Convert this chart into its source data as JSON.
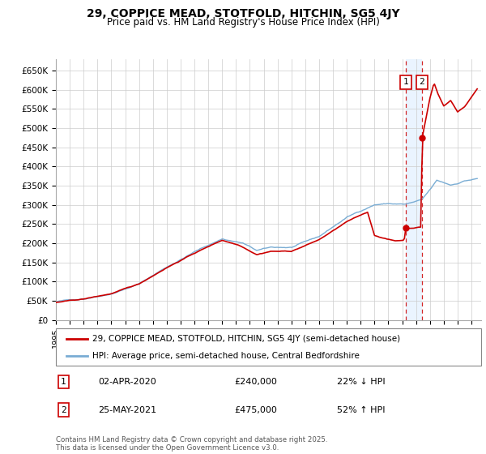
{
  "title": "29, COPPICE MEAD, STOTFOLD, HITCHIN, SG5 4JY",
  "subtitle": "Price paid vs. HM Land Registry's House Price Index (HPI)",
  "ylim": [
    0,
    680000
  ],
  "yticks": [
    0,
    50000,
    100000,
    150000,
    200000,
    250000,
    300000,
    350000,
    400000,
    450000,
    500000,
    550000,
    600000,
    650000
  ],
  "ytick_labels": [
    "£0",
    "£50K",
    "£100K",
    "£150K",
    "£200K",
    "£250K",
    "£300K",
    "£350K",
    "£400K",
    "£450K",
    "£500K",
    "£550K",
    "£600K",
    "£650K"
  ],
  "xlim_start": 1995.3,
  "xlim_end": 2025.7,
  "xticks": [
    1995,
    1996,
    1997,
    1998,
    1999,
    2000,
    2001,
    2002,
    2003,
    2004,
    2005,
    2006,
    2007,
    2008,
    2009,
    2010,
    2011,
    2012,
    2013,
    2014,
    2015,
    2016,
    2017,
    2018,
    2019,
    2020,
    2021,
    2022,
    2023,
    2024,
    2025
  ],
  "grid_color": "#cccccc",
  "hpi_color": "#7aadd4",
  "price_color": "#cc0000",
  "shade_color": "#ddeeff",
  "transaction1_x": 2020.25,
  "transaction1_y": 240000,
  "transaction2_x": 2021.42,
  "transaction2_y": 475000,
  "legend_label1": "29, COPPICE MEAD, STOTFOLD, HITCHIN, SG5 4JY (semi-detached house)",
  "legend_label2": "HPI: Average price, semi-detached house, Central Bedfordshire",
  "annotation1_date": "02-APR-2020",
  "annotation1_price": "£240,000",
  "annotation1_hpi": "22% ↓ HPI",
  "annotation2_date": "25-MAY-2021",
  "annotation2_price": "£475,000",
  "annotation2_hpi": "52% ↑ HPI",
  "footer": "Contains HM Land Registry data © Crown copyright and database right 2025.\nThis data is licensed under the Open Government Licence v3.0."
}
